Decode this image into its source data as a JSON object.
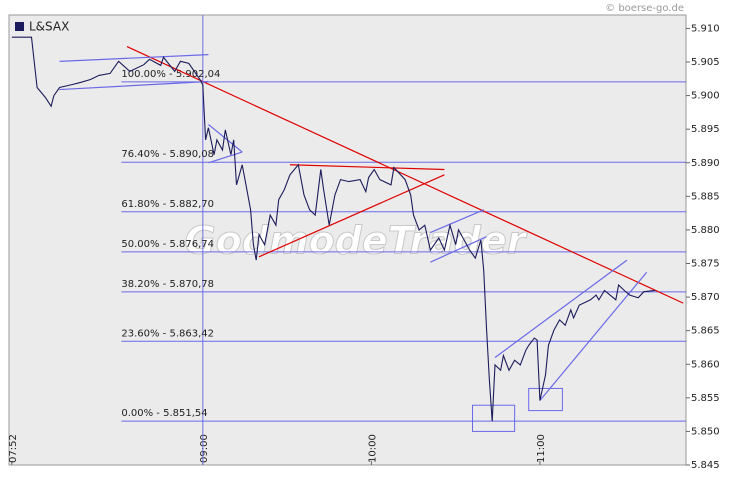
{
  "chart_data": {
    "type": "line",
    "watermark": "© boerse-go.de",
    "brand": "GodmodeTrader",
    "x": [
      "07:52",
      "07:59",
      "08:01",
      "08:04",
      "08:06",
      "08:07",
      "08:09",
      "08:13",
      "08:16",
      "08:20",
      "08:23",
      "08:27",
      "08:30",
      "08:34",
      "08:39",
      "08:41",
      "08:45",
      "08:46",
      "08:50",
      "08:52",
      "08:55",
      "08:59",
      "09:00",
      "09:01",
      "09:02",
      "09:04",
      "09:05",
      "09:07",
      "09:08",
      "09:10",
      "09:11",
      "09:12",
      "09:14",
      "09:15",
      "09:17",
      "09:18",
      "09:19",
      "09:20",
      "09:22",
      "09:24",
      "09:26",
      "09:27",
      "09:29",
      "09:31",
      "09:34",
      "09:36",
      "09:38",
      "09:40",
      "09:42",
      "09:43",
      "09:45",
      "09:47",
      "09:49",
      "09:52",
      "09:56",
      "09:58",
      "09:59",
      "10:01",
      "10:03",
      "10:07",
      "10:08",
      "10:12",
      "10:14",
      "10:15",
      "10:17",
      "10:19",
      "10:21",
      "10:24",
      "10:26",
      "10:28",
      "10:30",
      "10:31",
      "10:35",
      "10:37",
      "10:39",
      "10:40",
      "10:41",
      "10:42",
      "10:43",
      "10:44",
      "10:46",
      "10:47",
      "10:49",
      "10:51",
      "10:53",
      "10:55",
      "10:56",
      "10:58",
      "10:59",
      "11:00",
      "11:02",
      "11:03",
      "11:05",
      "11:07",
      "11:09",
      "11:11",
      "11:12",
      "11:14",
      "11:18",
      "11:20",
      "11:21",
      "11:23",
      "11:27",
      "11:28",
      "11:30",
      "11:32",
      "11:35",
      "11:37",
      "11:41"
    ],
    "series": [
      {
        "name": "L&SAX",
        "color": "#1c1c5c",
        "values": [
          5.9087,
          5.9087,
          5.9012,
          5.8997,
          5.8984,
          5.9,
          5.9012,
          5.9016,
          5.9019,
          5.9024,
          5.903,
          5.9033,
          5.9051,
          5.9036,
          5.9046,
          5.9054,
          5.9045,
          5.9057,
          5.9036,
          5.9051,
          5.9048,
          5.9024,
          5.9016,
          5.8934,
          5.8952,
          5.8912,
          5.8934,
          5.8919,
          5.8949,
          5.8912,
          5.8934,
          5.8867,
          5.8897,
          5.8875,
          5.883,
          5.8778,
          5.8755,
          5.8793,
          5.8778,
          5.8822,
          5.8807,
          5.8845,
          5.886,
          5.8882,
          5.8897,
          5.8852,
          5.883,
          5.8822,
          5.889,
          5.886,
          5.8807,
          5.8852,
          5.8875,
          5.8872,
          5.8875,
          5.8857,
          5.8878,
          5.889,
          5.8875,
          5.8867,
          5.8893,
          5.8875,
          5.8852,
          5.8822,
          5.88,
          5.8807,
          5.877,
          5.8788,
          5.877,
          5.8807,
          5.8778,
          5.88,
          5.877,
          5.8758,
          5.8785,
          5.874,
          5.8651,
          5.8576,
          5.8515,
          5.8599,
          5.8591,
          5.8613,
          5.8591,
          5.8606,
          5.8599,
          5.8621,
          5.8628,
          5.8639,
          5.8636,
          5.8546,
          5.8584,
          5.8628,
          5.8651,
          5.8666,
          5.8658,
          5.8681,
          5.8669,
          5.8688,
          5.8696,
          5.8703,
          5.8696,
          5.871,
          5.8696,
          5.8718,
          5.871,
          5.8703,
          5.8699,
          5.8708,
          5.871
        ]
      }
    ],
    "xlim": [
      "07:51",
      "11:52"
    ],
    "xticks": [
      "07:52",
      "09:00",
      "10:00",
      "11:00"
    ],
    "vline": "09:00",
    "ylim": [
      5.845,
      5.912
    ],
    "yticks": [
      {
        "value": 5.845,
        "label": "5.845"
      },
      {
        "value": 5.85,
        "label": "5.850"
      },
      5.855,
      {
        "value": 5.86,
        "label": "5.860"
      },
      5.865,
      {
        "value": 5.87,
        "label": "5.870"
      },
      5.875,
      {
        "value": 5.88,
        "label": "5.880"
      },
      5.885,
      {
        "value": 5.89,
        "label": "5.890"
      },
      5.895,
      {
        "value": 5.9,
        "label": "5.900"
      },
      5.905,
      {
        "value": 5.91,
        "label": "5.910"
      }
    ],
    "levels_start": "08:31",
    "levels": [
      {
        "value": 5.90204,
        "label": "100.00% - 5.902,04"
      },
      {
        "value": 5.89008,
        "label": "76.40% - 5.890,08"
      },
      {
        "value": 5.8827,
        "label": "61.80% - 5.882,70"
      },
      {
        "value": 5.87674,
        "label": "50.00% - 5.876,74"
      },
      {
        "value": 5.87078,
        "label": "38.20% - 5.870,78"
      },
      {
        "value": 5.86342,
        "label": "23.60% - 5.863,42"
      },
      {
        "value": 5.85154,
        "label": "0.00% - 5.851,54"
      }
    ],
    "drawings": [
      {
        "color": "#e00000",
        "x": [
          "08:33",
          "11:51"
        ],
        "y": [
          5.9073,
          5.8691
        ]
      },
      {
        "color": "#e00000",
        "x": [
          "09:20",
          "10:26"
        ],
        "y": [
          5.876,
          5.8882
        ]
      },
      {
        "color": "#e00000",
        "x": [
          "09:31",
          "10:26"
        ],
        "y": [
          5.8897,
          5.889
        ]
      },
      {
        "color": "#6a6ae8",
        "x": [
          "08:09",
          "09:02"
        ],
        "y": [
          5.9051,
          5.9061
        ]
      },
      {
        "color": "#6a6ae8",
        "x": [
          "08:09",
          "09:02"
        ],
        "y": [
          5.9009,
          5.9021
        ]
      },
      {
        "color": "#6a6ae8",
        "x": [
          "09:02",
          "09:14"
        ],
        "y": [
          5.8957,
          5.8916
        ]
      },
      {
        "color": "#6a6ae8",
        "x": [
          "09:02",
          "09:14"
        ],
        "y": [
          5.89,
          5.8916
        ]
      },
      {
        "color": "#6a6ae8",
        "x": [
          "10:21",
          "10:40"
        ],
        "y": [
          5.8796,
          5.883
        ]
      },
      {
        "color": "#6a6ae8",
        "x": [
          "10:21",
          "10:41"
        ],
        "y": [
          5.8752,
          5.879
        ]
      },
      {
        "color": "#6a6ae8",
        "x": [
          "10:44",
          "11:31"
        ],
        "y": [
          5.861,
          5.8755
        ]
      },
      {
        "color": "#6a6ae8",
        "x": [
          "11:00",
          "11:38"
        ],
        "y": [
          5.8546,
          5.8737
        ]
      }
    ],
    "boxes": [
      {
        "color": "#6a6ae8",
        "x": [
          "10:36",
          "10:51"
        ],
        "y": [
          5.85,
          5.8539
        ]
      },
      {
        "color": "#6a6ae8",
        "x": [
          "10:56",
          "11:08"
        ],
        "y": [
          5.8531,
          5.8564
        ]
      }
    ]
  }
}
